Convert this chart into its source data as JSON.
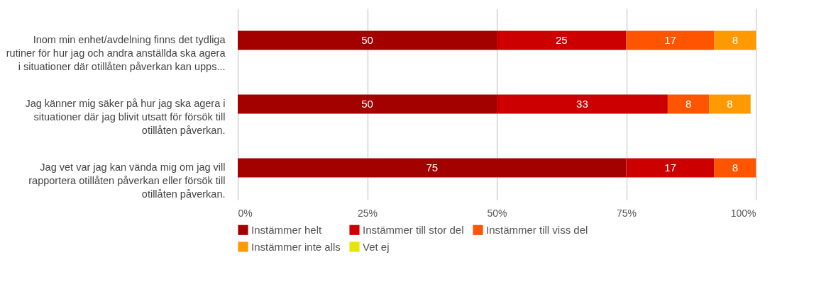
{
  "chart_data": {
    "type": "bar",
    "orientation": "horizontal",
    "stacked": true,
    "data_labels": true,
    "grid": "x",
    "legend": "bottom",
    "categories": [
      "Inom min enhet/avdelning finns det tydliga rutiner för hur jag och andra anställda ska agera i situationer där otillåten påverkan kan upps...",
      "Jag känner mig säker på hur jag ska agera i situationer där jag blivit utsatt för försök till otillåten påverkan.",
      "Jag vet var jag kan vända mig om jag vill rapportera otillåten påverkan eller försök till otillåten påverkan."
    ],
    "series": [
      {
        "name": "Instämmer helt",
        "color": "#a30000",
        "values": [
          50,
          50,
          75
        ]
      },
      {
        "name": "Instämmer till stor del",
        "color": "#cc0000",
        "values": [
          25,
          33,
          17
        ]
      },
      {
        "name": "Instämmer till viss del",
        "color": "#ff5500",
        "values": [
          17,
          8,
          8
        ]
      },
      {
        "name": "Instämmer inte alls",
        "color": "#ff9900",
        "values": [
          8,
          8,
          null
        ]
      },
      {
        "name": "Vet ej",
        "color": "#e6e600",
        "values": [
          null,
          null,
          null
        ]
      }
    ],
    "xlim": [
      0,
      100
    ],
    "xticks": [
      {
        "value": 0,
        "label": "0%"
      },
      {
        "value": 25,
        "label": "25%"
      },
      {
        "value": 50,
        "label": "50%"
      },
      {
        "value": 75,
        "label": "75%"
      },
      {
        "value": 100,
        "label": "100%"
      }
    ]
  }
}
